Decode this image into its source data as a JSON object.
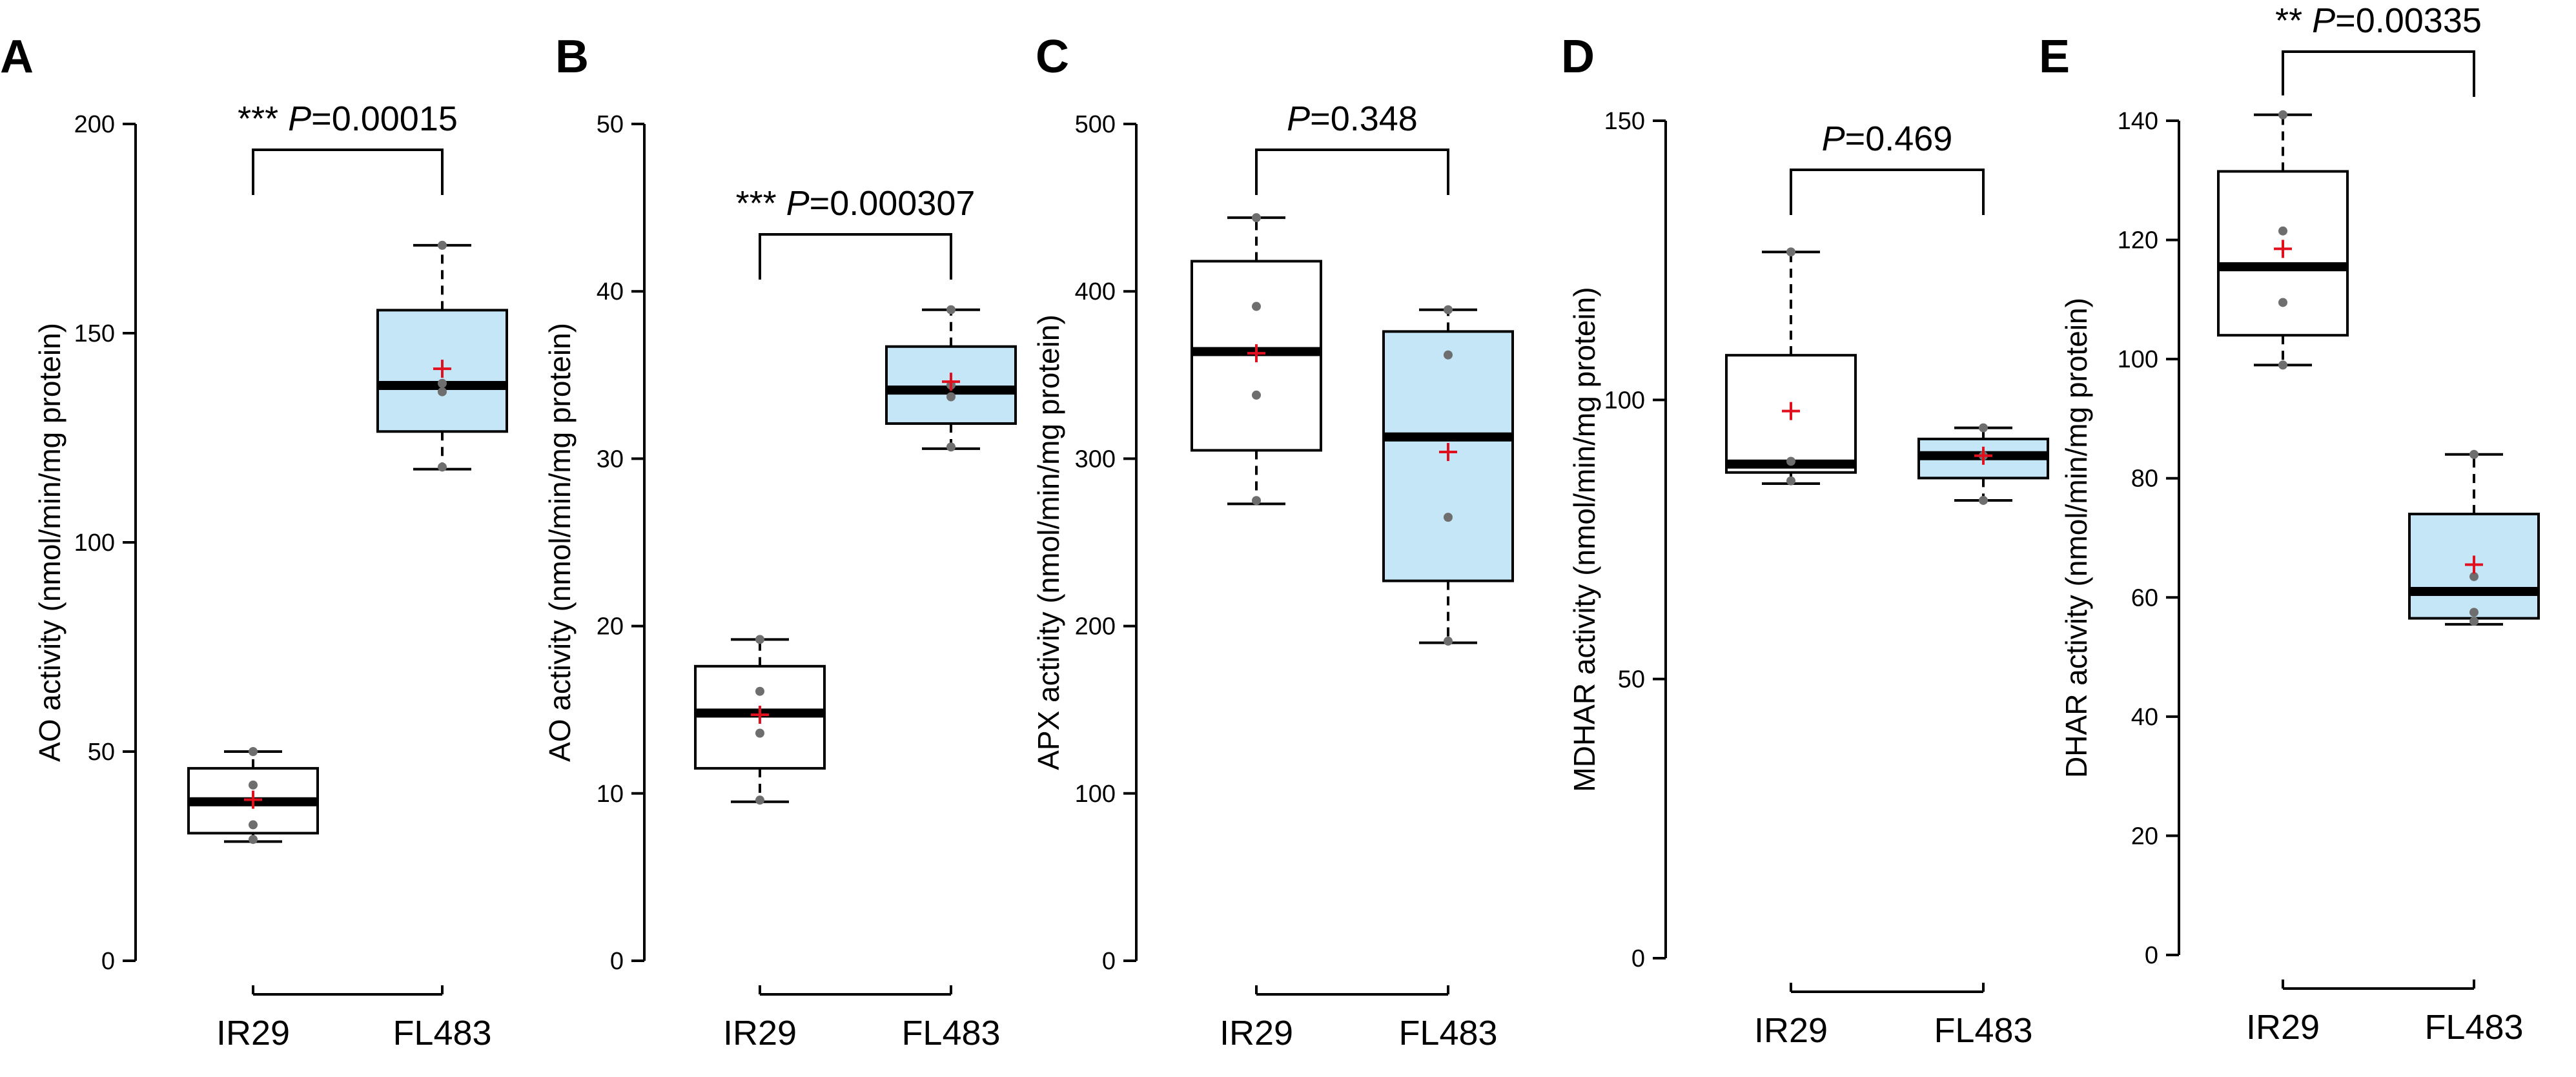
{
  "figure": {
    "colors": {
      "ir29_fill": "#ffffff",
      "fl483_fill": "#c5e6f6",
      "mean_marker": "#e0101e",
      "points": "#6e6e6e",
      "line": "#000000"
    }
  },
  "chart_data": [
    {
      "type": "boxplot",
      "panel_label": "A",
      "ylabel": "AO activity (nmol/min/mg protein)",
      "ylim": [
        0,
        200
      ],
      "yticks": [
        0,
        50,
        100,
        150,
        200
      ],
      "categories": [
        "IR29",
        "FL483"
      ],
      "significance": {
        "stars": "***",
        "p_symbol": "P",
        "p_value": "=0.00015"
      },
      "boxes": [
        {
          "name": "IR29",
          "whisker_low": 28.5,
          "q1": 30.5,
          "median": 38,
          "q3": 46,
          "whisker_high": 50,
          "mean": 38.5,
          "points": [
            29,
            32.5,
            42,
            50
          ]
        },
        {
          "name": "FL483",
          "whisker_low": 117.5,
          "q1": 126.5,
          "median": 137.5,
          "q3": 155.5,
          "whisker_high": 171,
          "mean": 141.5,
          "points": [
            118,
            136,
            138,
            171
          ]
        }
      ]
    },
    {
      "type": "boxplot",
      "panel_label": "B",
      "ylabel": "AO activity (nmol/min/mg protein)",
      "ylim": [
        0,
        50
      ],
      "yticks": [
        0,
        10,
        20,
        30,
        40,
        50
      ],
      "categories": [
        "IR29",
        "FL483"
      ],
      "significance": {
        "stars": "***",
        "p_symbol": "P",
        "p_value": "=0.000307"
      },
      "boxes": [
        {
          "name": "IR29",
          "whisker_low": 9.5,
          "q1": 11.5,
          "median": 14.8,
          "q3": 17.6,
          "whisker_high": 19.2,
          "mean": 14.7,
          "points": [
            9.6,
            13.6,
            16.1,
            19.2
          ]
        },
        {
          "name": "FL483",
          "whisker_low": 30.6,
          "q1": 32.1,
          "median": 34.1,
          "q3": 36.7,
          "whisker_high": 38.9,
          "mean": 34.6,
          "points": [
            30.7,
            33.7,
            34.4,
            38.9
          ]
        }
      ]
    },
    {
      "type": "boxplot",
      "panel_label": "C",
      "ylabel": "APX activity (nmol/min/mg protein)",
      "ylim": [
        0,
        500
      ],
      "yticks": [
        0,
        100,
        200,
        300,
        400,
        500
      ],
      "categories": [
        "IR29",
        "FL483"
      ],
      "significance": {
        "stars": "",
        "p_symbol": "P",
        "p_value": "=0.348"
      },
      "boxes": [
        {
          "name": "IR29",
          "whisker_low": 273,
          "q1": 305,
          "median": 364,
          "q3": 418,
          "whisker_high": 444,
          "mean": 363,
          "points": [
            275,
            338,
            391,
            444
          ]
        },
        {
          "name": "FL483",
          "whisker_low": 190,
          "q1": 227,
          "median": 313,
          "q3": 376,
          "whisker_high": 389,
          "mean": 304,
          "points": [
            191,
            265,
            362,
            389
          ]
        }
      ]
    },
    {
      "type": "boxplot",
      "panel_label": "D",
      "ylabel": "MDHAR activity (nmol/min/mg protein)",
      "ylim": [
        0,
        150
      ],
      "yticks": [
        0,
        50,
        100,
        150
      ],
      "categories": [
        "IR29",
        "FL483"
      ],
      "significance": {
        "stars": "",
        "p_symbol": "P",
        "p_value": "=0.469"
      },
      "boxes": [
        {
          "name": "IR29",
          "whisker_low": 85,
          "q1": 87,
          "median": 88.5,
          "q3": 108,
          "whisker_high": 126.5,
          "mean": 98,
          "points": [
            85.5,
            89,
            126.5
          ]
        },
        {
          "name": "FL483",
          "whisker_low": 82,
          "q1": 86,
          "median": 90,
          "q3": 93,
          "whisker_high": 95,
          "mean": 90,
          "points": [
            82,
            90,
            95
          ]
        }
      ]
    },
    {
      "type": "boxplot",
      "panel_label": "E",
      "ylabel": "DHAR activity (nmol/min/mg protein)",
      "ylim": [
        0,
        140
      ],
      "yticks": [
        0,
        20,
        40,
        60,
        80,
        100,
        120,
        140
      ],
      "categories": [
        "IR29",
        "FL483"
      ],
      "significance": {
        "stars": "**",
        "p_symbol": "P",
        "p_value": "=0.00335"
      },
      "boxes": [
        {
          "name": "IR29",
          "whisker_low": 99,
          "q1": 104,
          "median": 115.5,
          "q3": 131.5,
          "whisker_high": 141,
          "mean": 118.5,
          "points": [
            99,
            109.5,
            121.5,
            141
          ]
        },
        {
          "name": "FL483",
          "whisker_low": 55.5,
          "q1": 56.5,
          "median": 61,
          "q3": 74,
          "whisker_high": 84,
          "mean": 65.5,
          "points": [
            56,
            57.5,
            63.5,
            84
          ]
        }
      ]
    }
  ]
}
